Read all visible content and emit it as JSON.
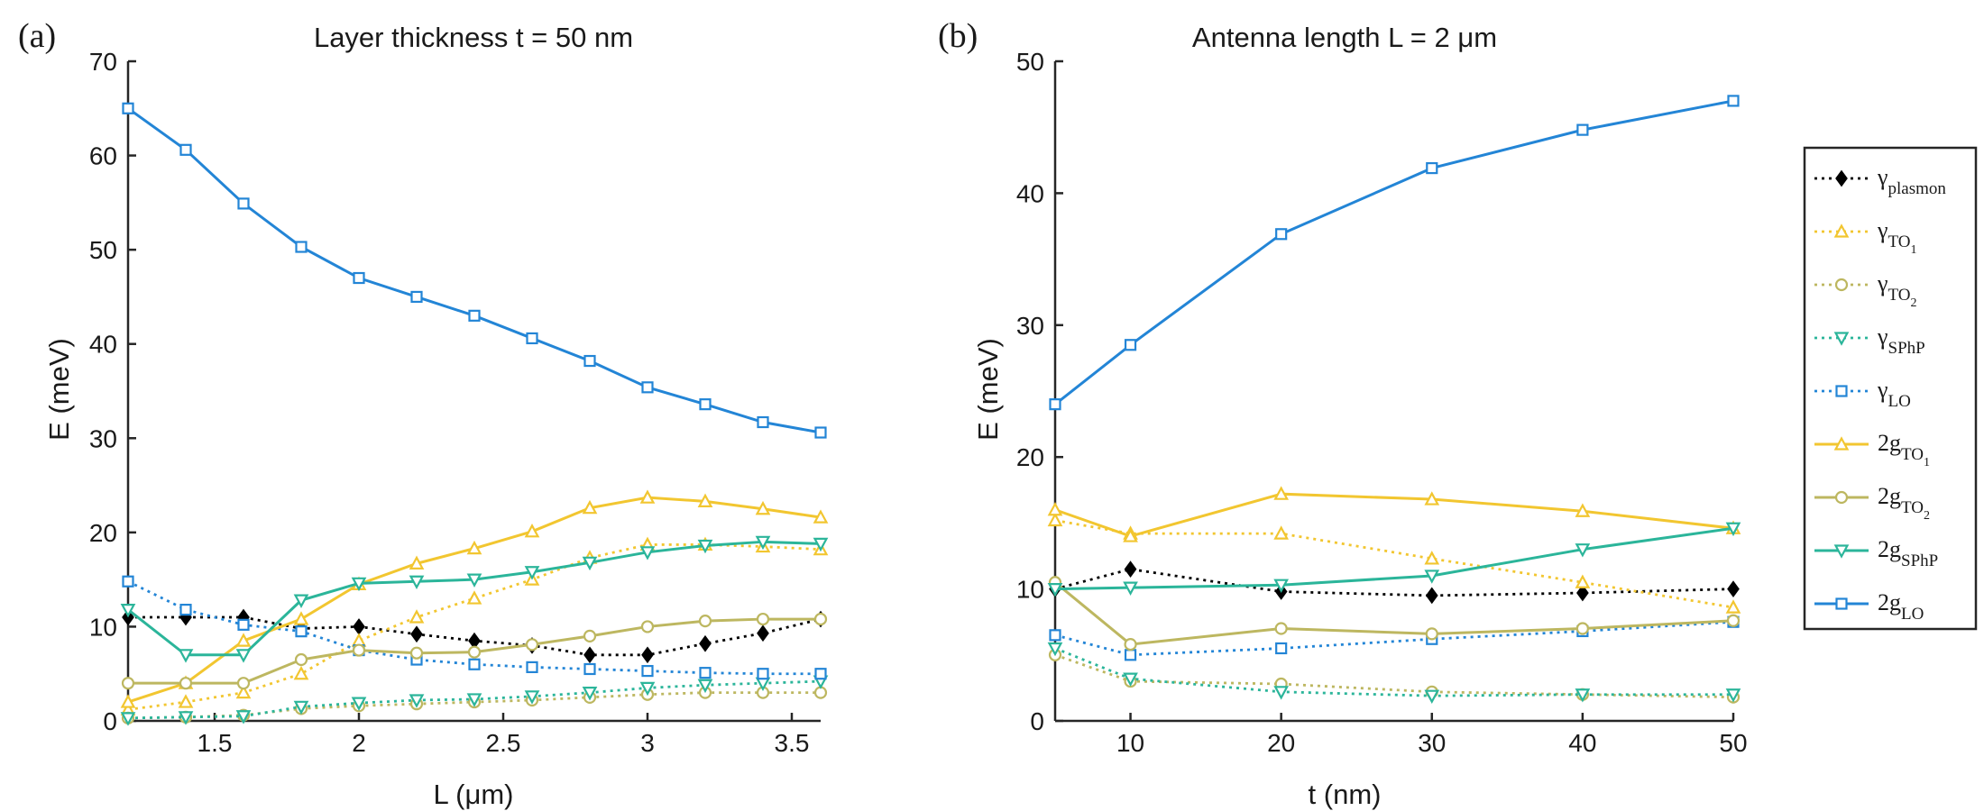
{
  "colors": {
    "plasmon": "#000000",
    "to1": "#f2c630",
    "to2": "#bdb760",
    "sphp": "#2bb59a",
    "lo": "#2385d6"
  },
  "chart_data": [
    {
      "type": "line",
      "panel_label": "(a)",
      "title": "Layer thickness t = 50 nm",
      "xlabel": "L (μm)",
      "ylabel": "E (meV)",
      "xlim": [
        1.2,
        3.6
      ],
      "ylim": [
        0,
        70
      ],
      "xticks": [
        1.5,
        2,
        2.5,
        3,
        3.5
      ],
      "xtick_labels": [
        "1.5",
        "2",
        "2.5",
        "3",
        "3.5"
      ],
      "yticks": [
        0,
        10,
        20,
        30,
        40,
        50,
        60,
        70
      ],
      "ytick_labels": [
        "0",
        "10",
        "20",
        "30",
        "40",
        "50",
        "60",
        "70"
      ],
      "x": [
        1.2,
        1.4,
        1.6,
        1.8,
        2.0,
        2.2,
        2.4,
        2.6,
        2.8,
        3.0,
        3.2,
        3.4,
        3.6
      ],
      "series": [
        {
          "key": "gamma_plasmon",
          "color": "plasmon",
          "dash": true,
          "marker": "diamond",
          "values": [
            11,
            11,
            11,
            9.8,
            10,
            9.2,
            8.5,
            8,
            7,
            7,
            8.2,
            9.3,
            10.8
          ]
        },
        {
          "key": "gamma_TO1",
          "color": "to1",
          "dash": true,
          "marker": "triangle",
          "values": [
            1.2,
            2,
            3,
            5,
            8.5,
            11,
            13,
            15,
            17.3,
            18.7,
            18.7,
            18.5,
            18.2
          ]
        },
        {
          "key": "gamma_TO2",
          "color": "to2",
          "dash": true,
          "marker": "circle",
          "values": [
            0.3,
            0.4,
            0.6,
            1.3,
            1.6,
            1.8,
            2,
            2.2,
            2.5,
            2.8,
            3,
            3,
            3
          ]
        },
        {
          "key": "gamma_SPhP",
          "color": "sphp",
          "dash": true,
          "marker": "triangle-down",
          "values": [
            0.3,
            0.4,
            0.5,
            1.5,
            1.9,
            2.2,
            2.3,
            2.6,
            3,
            3.5,
            3.8,
            4,
            4.2
          ]
        },
        {
          "key": "gamma_LO",
          "color": "lo",
          "dash": true,
          "marker": "square",
          "values": [
            14.8,
            11.8,
            10.2,
            9.5,
            7.5,
            6.5,
            6,
            5.7,
            5.5,
            5.3,
            5.1,
            5,
            5
          ]
        },
        {
          "key": "2g_TO1",
          "color": "to1",
          "dash": false,
          "marker": "triangle",
          "values": [
            2,
            4,
            8.5,
            10.8,
            14.5,
            16.7,
            18.3,
            20.1,
            22.6,
            23.7,
            23.3,
            22.5,
            21.6
          ]
        },
        {
          "key": "2g_TO2",
          "color": "to2",
          "dash": false,
          "marker": "circle",
          "values": [
            4,
            4,
            4,
            6.5,
            7.5,
            7.2,
            7.3,
            8.1,
            9,
            10,
            10.6,
            10.8,
            10.8
          ]
        },
        {
          "key": "2g_SPhP",
          "color": "sphp",
          "dash": false,
          "marker": "triangle-down",
          "values": [
            11.8,
            7,
            7,
            12.8,
            14.6,
            14.8,
            15,
            15.8,
            16.8,
            17.9,
            18.6,
            19,
            18.8
          ]
        },
        {
          "key": "2g_LO",
          "color": "lo",
          "dash": false,
          "marker": "square",
          "values": [
            65,
            60.6,
            54.9,
            50.3,
            47,
            45,
            43,
            40.6,
            38.2,
            35.4,
            33.6,
            31.7,
            30.6
          ]
        }
      ]
    },
    {
      "type": "line",
      "panel_label": "(b)",
      "title": "Antenna length L = 2 μm",
      "xlabel": "t (nm)",
      "ylabel": "E (meV)",
      "xlim": [
        5,
        50
      ],
      "ylim": [
        0,
        50
      ],
      "xticks": [
        10,
        20,
        30,
        40,
        50
      ],
      "xtick_labels": [
        "10",
        "20",
        "30",
        "40",
        "50"
      ],
      "yticks": [
        0,
        10,
        20,
        30,
        40,
        50
      ],
      "ytick_labels": [
        "0",
        "10",
        "20",
        "30",
        "40",
        "50"
      ],
      "x": [
        5,
        10,
        20,
        30,
        40,
        50
      ],
      "series": [
        {
          "key": "gamma_plasmon",
          "color": "plasmon",
          "dash": true,
          "marker": "diamond",
          "values": [
            10,
            11.5,
            9.8,
            9.5,
            9.7,
            10
          ]
        },
        {
          "key": "gamma_TO1",
          "color": "to1",
          "dash": true,
          "marker": "triangle",
          "values": [
            15.2,
            14.2,
            14.2,
            12.3,
            10.5,
            8.6
          ]
        },
        {
          "key": "gamma_TO2",
          "color": "to2",
          "dash": true,
          "marker": "circle",
          "values": [
            5,
            3,
            2.8,
            2.2,
            2,
            1.8
          ]
        },
        {
          "key": "gamma_SPhP",
          "color": "sphp",
          "dash": true,
          "marker": "triangle-down",
          "values": [
            5.5,
            3.2,
            2.2,
            1.9,
            2,
            2
          ]
        },
        {
          "key": "gamma_LO",
          "color": "lo",
          "dash": true,
          "marker": "square",
          "values": [
            6.5,
            5,
            5.5,
            6.2,
            6.8,
            7.5
          ]
        },
        {
          "key": "2g_TO1",
          "color": "to1",
          "dash": false,
          "marker": "triangle",
          "values": [
            16,
            14,
            17.2,
            16.8,
            15.9,
            14.6
          ]
        },
        {
          "key": "2g_TO2",
          "color": "to2",
          "dash": false,
          "marker": "circle",
          "values": [
            10.5,
            5.8,
            7,
            6.6,
            7,
            7.6
          ]
        },
        {
          "key": "2g_SPhP",
          "color": "sphp",
          "dash": false,
          "marker": "triangle-down",
          "values": [
            10,
            10.1,
            10.3,
            11,
            13,
            14.6
          ]
        },
        {
          "key": "2g_LO",
          "color": "lo",
          "dash": false,
          "marker": "square",
          "values": [
            24,
            28.5,
            36.9,
            41.9,
            44.8,
            47
          ]
        }
      ]
    }
  ],
  "legend": {
    "placement": "right",
    "entries": [
      {
        "key": "gamma_plasmon",
        "base": "γ",
        "sub": "plasmon",
        "subsub": ""
      },
      {
        "key": "gamma_TO1",
        "base": "γ",
        "sub": "TO",
        "subsub": "1"
      },
      {
        "key": "gamma_TO2",
        "base": "γ",
        "sub": "TO",
        "subsub": "2"
      },
      {
        "key": "gamma_SPhP",
        "base": "γ",
        "sub": "SPhP",
        "subsub": ""
      },
      {
        "key": "gamma_LO",
        "base": "γ",
        "sub": "LO",
        "subsub": ""
      },
      {
        "key": "2g_TO1",
        "base": "2g",
        "sub": "TO",
        "subsub": "1"
      },
      {
        "key": "2g_TO2",
        "base": "2g",
        "sub": "TO",
        "subsub": "2"
      },
      {
        "key": "2g_SPhP",
        "base": "2g",
        "sub": "SPhP",
        "subsub": ""
      },
      {
        "key": "2g_LO",
        "base": "2g",
        "sub": "LO",
        "subsub": ""
      }
    ]
  }
}
